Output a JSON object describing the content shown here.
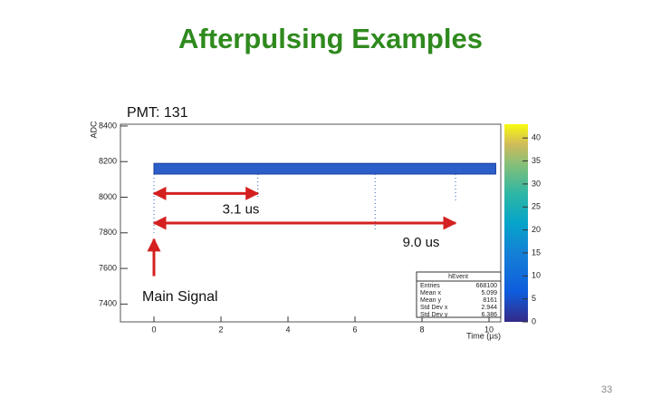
{
  "slide": {
    "title": "Afterpulsing Examples",
    "page_number": "33"
  },
  "chart_data": {
    "type": "histogram2d",
    "xlabel": "Time (µs)",
    "ylabel": "ADC",
    "xlim": [
      -1,
      10.35
    ],
    "ylim": [
      7300,
      8410
    ],
    "xticks": [
      0,
      2,
      4,
      6,
      8,
      10
    ],
    "yticks": [
      7400,
      7600,
      7800,
      8000,
      8200,
      8400
    ],
    "zlim": [
      0,
      43
    ],
    "zticks": [
      0,
      5,
      10,
      15,
      20,
      25,
      30,
      35,
      40
    ],
    "band": {
      "x": [
        0,
        10.2
      ],
      "y": [
        8130,
        8190
      ]
    },
    "pulses": [
      {
        "x": 0,
        "min": 7800
      },
      {
        "x": 3.1,
        "min": 8000
      },
      {
        "x": 6.6,
        "min": 7810
      },
      {
        "x": 9.0,
        "min": 7970
      }
    ],
    "annotations": [
      {
        "text": "PMT: 131"
      },
      {
        "text": "3.1 us",
        "x": [
          0,
          3.1
        ],
        "y": 8021
      },
      {
        "text": "9.0 us",
        "x": [
          0,
          9.0
        ],
        "y": 7855
      },
      {
        "text": "Main Signal",
        "x": 0,
        "y": [
          7557,
          7764
        ]
      }
    ],
    "stats": {
      "title": "hEvent",
      "rows": [
        [
          "Entries",
          "668100"
        ],
        [
          "Mean x",
          "5.099"
        ],
        [
          "Mean y",
          "8161"
        ],
        [
          "Std Dev x",
          "2.944"
        ],
        [
          "Std Dev y",
          "6.386"
        ]
      ]
    }
  }
}
